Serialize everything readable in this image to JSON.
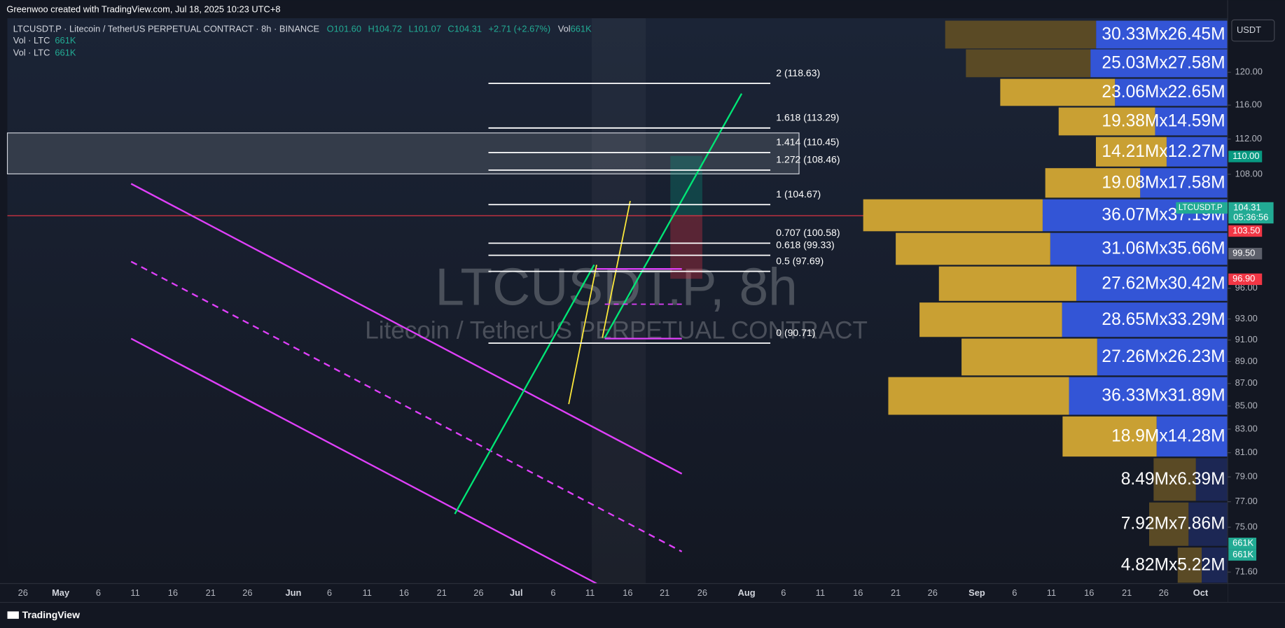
{
  "header": {
    "credit": "Greenwoo created with TradingView.com, Jul 18, 2025 10:23 UTC+8",
    "symbol_line": "LTCUSDT.P · Litecoin / TetherUS PERPETUAL CONTRACT · 8h · BINANCE",
    "ohlc": [
      "O101.60",
      "H104.72",
      "L101.07",
      "C104.31",
      "+2.71 (+2.67%)"
    ],
    "volume_label": "Vol",
    "volume_value": "661K",
    "indicators": [
      {
        "name": "Vol · LTC",
        "value": "661K"
      },
      {
        "name": "Vol · LTC",
        "value": "661K"
      }
    ]
  },
  "watermark": {
    "title": "LTCUSDT.P, 8h",
    "subtitle": "Litecoin / TetherUS PERPETUAL CONTRACT"
  },
  "currency": "USDT",
  "price_scale": {
    "log": true,
    "ticks": [
      {
        "value": 120,
        "label": "120.00"
      },
      {
        "value": 116,
        "label": "116.00"
      },
      {
        "value": 112,
        "label": "112.00"
      },
      {
        "value": 108,
        "label": "108.00"
      },
      {
        "value": 96,
        "label": "96.00"
      },
      {
        "value": 93,
        "label": "93.00"
      },
      {
        "value": 91,
        "label": "91.00"
      },
      {
        "value": 89,
        "label": "89.00"
      },
      {
        "value": 87,
        "label": "87.00"
      },
      {
        "value": 85,
        "label": "85.00"
      },
      {
        "value": 83,
        "label": "83.00"
      },
      {
        "value": 81,
        "label": "81.00"
      },
      {
        "value": 79,
        "label": "79.00"
      },
      {
        "value": 77,
        "label": "77.00"
      },
      {
        "value": 75,
        "label": "75.00"
      },
      {
        "value": 71.6,
        "label": "71.60"
      }
    ]
  },
  "price_tags": [
    {
      "value": 110,
      "label": "110.00",
      "color": "#089981"
    },
    {
      "value": 104.31,
      "label": "104.31",
      "name": "LTCUSDT.P",
      "countdown": "05:36:56",
      "color": "#22ab94"
    },
    {
      "value": 103.5,
      "label": "103.50",
      "color": "#f23645"
    },
    {
      "value": 99.5,
      "label": "99.50",
      "color": "#5d606b"
    },
    {
      "value": 96.9,
      "label": "96.90",
      "color": "#f23645"
    }
  ],
  "volume_tags": [
    "661K",
    "661K"
  ],
  "time_axis": [
    "26",
    "May",
    "6",
    "11",
    "16",
    "21",
    "26",
    "Jun",
    "6",
    "11",
    "16",
    "21",
    "26",
    "Jul",
    "6",
    "11",
    "16",
    "21",
    "26",
    "Aug",
    "6",
    "11",
    "16",
    "21",
    "26",
    "Sep",
    "6",
    "11",
    "16",
    "21",
    "26",
    "Oct"
  ],
  "fib_levels": [
    {
      "value": 118.63,
      "label": "2 (118.63)"
    },
    {
      "value": 113.29,
      "label": "1.618 (113.29)"
    },
    {
      "value": 110.45,
      "label": "1.414 (110.45)"
    },
    {
      "value": 108.46,
      "label": "1.272 (108.46)"
    },
    {
      "value": 104.67,
      "label": "1 (104.67)"
    },
    {
      "value": 100.58,
      "label": "0.707 (100.58)"
    },
    {
      "value": 99.33,
      "label": "0.618 (99.33)"
    },
    {
      "value": 97.69,
      "label": "0.5 (97.69)"
    },
    {
      "value": 90.71,
      "label": "0 (90.71)"
    }
  ],
  "volume_profile": {
    "buy_color": "#c9a033",
    "sell_color": "#3355d6",
    "dim_buy_color": "#5a4a25",
    "dim_sell_color": "#1c2754",
    "rows": [
      {
        "buy": 30.33,
        "sell": 26.45,
        "label": "30.33Mx26.45M",
        "buy_dim": true,
        "sell_dim": false
      },
      {
        "buy": 25.03,
        "sell": 27.58,
        "label": "25.03Mx27.58M",
        "buy_dim": true,
        "sell_dim": false
      },
      {
        "buy": 23.06,
        "sell": 22.65,
        "label": "23.06Mx22.65M",
        "buy_dim": false,
        "sell_dim": false
      },
      {
        "buy": 19.38,
        "sell": 14.59,
        "label": "19.38Mx14.59M",
        "buy_dim": false,
        "sell_dim": false
      },
      {
        "buy": 14.21,
        "sell": 12.27,
        "label": "14.21Mx12.27M",
        "buy_dim": false,
        "sell_dim": false
      },
      {
        "buy": 19.08,
        "sell": 17.58,
        "label": "19.08Mx17.58M",
        "buy_dim": false,
        "sell_dim": false
      },
      {
        "buy": 36.07,
        "sell": 37.19,
        "label": "36.07Mx37.19M",
        "buy_dim": false,
        "sell_dim": false
      },
      {
        "buy": 31.06,
        "sell": 35.66,
        "label": "31.06Mx35.66M",
        "buy_dim": false,
        "sell_dim": false
      },
      {
        "buy": 27.62,
        "sell": 30.42,
        "label": "27.62Mx30.42M",
        "buy_dim": false,
        "sell_dim": false
      },
      {
        "buy": 28.65,
        "sell": 33.29,
        "label": "28.65Mx33.29M",
        "buy_dim": false,
        "sell_dim": false
      },
      {
        "buy": 27.26,
        "sell": 26.23,
        "label": "27.26Mx26.23M",
        "buy_dim": false,
        "sell_dim": false
      },
      {
        "buy": 36.33,
        "sell": 31.89,
        "label": "36.33Mx31.89M",
        "buy_dim": false,
        "sell_dim": false
      },
      {
        "buy": 18.9,
        "sell": 14.28,
        "label": "18.9Mx14.28M",
        "buy_dim": false,
        "sell_dim": false
      },
      {
        "buy": 8.49,
        "sell": 6.39,
        "label": "8.49Mx6.39M",
        "buy_dim": true,
        "sell_dim": true
      },
      {
        "buy": 7.92,
        "sell": 7.86,
        "label": "7.92Mx7.86M",
        "buy_dim": true,
        "sell_dim": true
      },
      {
        "buy": 4.82,
        "sell": 5.22,
        "label": "4.82Mx5.22M",
        "buy_dim": true,
        "sell_dim": true
      }
    ]
  },
  "footer": {
    "brand": "TradingView"
  }
}
